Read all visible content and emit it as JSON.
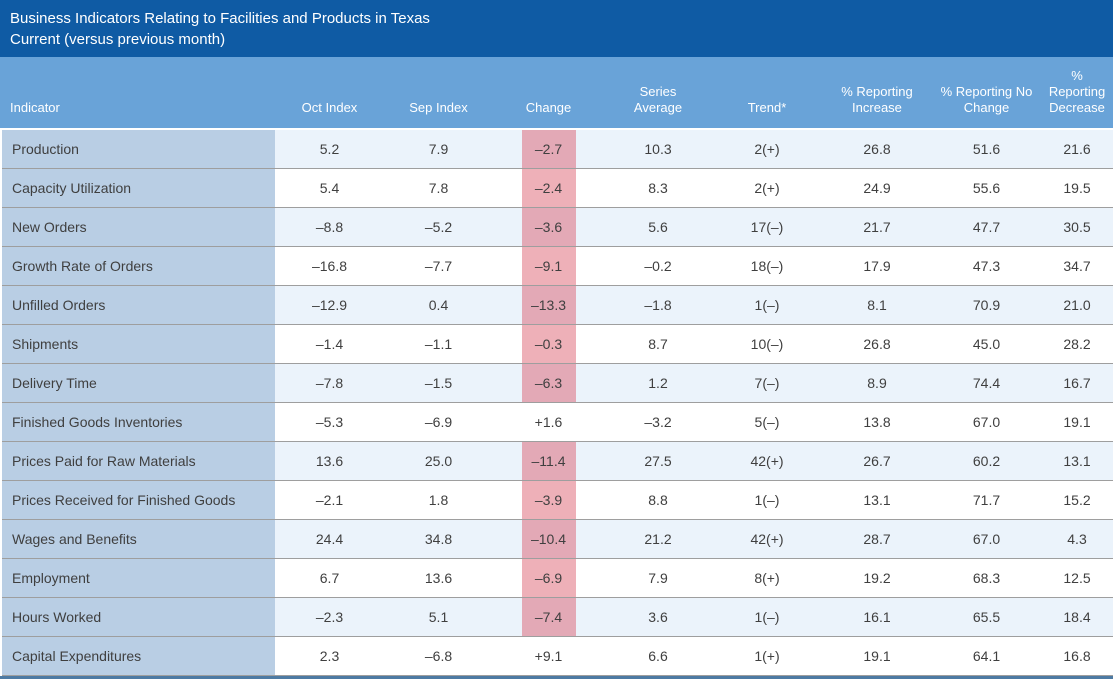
{
  "title": {
    "line1": "Business Indicators Relating to Facilities and Products in Texas",
    "line2": "Current (versus previous month)"
  },
  "colors": {
    "titlebar_bg": "#0f5ba4",
    "header_bg": "#69a3d8",
    "indicator_column_bg": "#b9cee4",
    "odd_row_bg": "#ebf3fb",
    "even_row_bg": "#ffffff",
    "negative_change_highlight": "rgba(217,79,97,0.45)",
    "row_divider": "#9e9e9e",
    "bottom_border": "#4d7aa3",
    "body_text": "#3f3f3f",
    "header_text": "#ffffff"
  },
  "table": {
    "columns": [
      "Indicator",
      "Oct Index",
      "Sep Index",
      "Change",
      "Series\nAverage",
      "Trend*",
      "% Reporting\nIncrease",
      "% Reporting No\nChange",
      "%\nReporting\nDecrease"
    ],
    "rows": [
      {
        "indicator": "Production",
        "oct_index": "5.2",
        "sep_index": "7.9",
        "change": "–2.7",
        "change_negative": true,
        "series_average": "10.3",
        "trend": "2(+)",
        "pct_increase": "26.8",
        "pct_no_change": "51.6",
        "pct_decrease": "21.6"
      },
      {
        "indicator": "Capacity Utilization",
        "oct_index": "5.4",
        "sep_index": "7.8",
        "change": "–2.4",
        "change_negative": true,
        "series_average": "8.3",
        "trend": "2(+)",
        "pct_increase": "24.9",
        "pct_no_change": "55.6",
        "pct_decrease": "19.5"
      },
      {
        "indicator": "New Orders",
        "oct_index": "–8.8",
        "sep_index": "–5.2",
        "change": "–3.6",
        "change_negative": true,
        "series_average": "5.6",
        "trend": "17(–)",
        "pct_increase": "21.7",
        "pct_no_change": "47.7",
        "pct_decrease": "30.5"
      },
      {
        "indicator": "Growth Rate of Orders",
        "oct_index": "–16.8",
        "sep_index": "–7.7",
        "change": "–9.1",
        "change_negative": true,
        "series_average": "–0.2",
        "trend": "18(–)",
        "pct_increase": "17.9",
        "pct_no_change": "47.3",
        "pct_decrease": "34.7"
      },
      {
        "indicator": "Unfilled Orders",
        "oct_index": "–12.9",
        "sep_index": "0.4",
        "change": "–13.3",
        "change_negative": true,
        "series_average": "–1.8",
        "trend": "1(–)",
        "pct_increase": "8.1",
        "pct_no_change": "70.9",
        "pct_decrease": "21.0"
      },
      {
        "indicator": "Shipments",
        "oct_index": "–1.4",
        "sep_index": "–1.1",
        "change": "–0.3",
        "change_negative": true,
        "series_average": "8.7",
        "trend": "10(–)",
        "pct_increase": "26.8",
        "pct_no_change": "45.0",
        "pct_decrease": "28.2"
      },
      {
        "indicator": "Delivery Time",
        "oct_index": "–7.8",
        "sep_index": "–1.5",
        "change": "–6.3",
        "change_negative": true,
        "series_average": "1.2",
        "trend": "7(–)",
        "pct_increase": "8.9",
        "pct_no_change": "74.4",
        "pct_decrease": "16.7"
      },
      {
        "indicator": "Finished Goods Inventories",
        "oct_index": "–5.3",
        "sep_index": "–6.9",
        "change": "+1.6",
        "change_negative": false,
        "series_average": "–3.2",
        "trend": "5(–)",
        "pct_increase": "13.8",
        "pct_no_change": "67.0",
        "pct_decrease": "19.1"
      },
      {
        "indicator": "Prices Paid for Raw Materials",
        "oct_index": "13.6",
        "sep_index": "25.0",
        "change": "–11.4",
        "change_negative": true,
        "series_average": "27.5",
        "trend": "42(+)",
        "pct_increase": "26.7",
        "pct_no_change": "60.2",
        "pct_decrease": "13.1"
      },
      {
        "indicator": "Prices Received for Finished Goods",
        "oct_index": "–2.1",
        "sep_index": "1.8",
        "change": "–3.9",
        "change_negative": true,
        "series_average": "8.8",
        "trend": "1(–)",
        "pct_increase": "13.1",
        "pct_no_change": "71.7",
        "pct_decrease": "15.2"
      },
      {
        "indicator": "Wages and Benefits",
        "oct_index": "24.4",
        "sep_index": "34.8",
        "change": "–10.4",
        "change_negative": true,
        "series_average": "21.2",
        "trend": "42(+)",
        "pct_increase": "28.7",
        "pct_no_change": "67.0",
        "pct_decrease": "4.3"
      },
      {
        "indicator": "Employment",
        "oct_index": "6.7",
        "sep_index": "13.6",
        "change": "–6.9",
        "change_negative": true,
        "series_average": "7.9",
        "trend": "8(+)",
        "pct_increase": "19.2",
        "pct_no_change": "68.3",
        "pct_decrease": "12.5"
      },
      {
        "indicator": "Hours Worked",
        "oct_index": "–2.3",
        "sep_index": "5.1",
        "change": "–7.4",
        "change_negative": true,
        "series_average": "3.6",
        "trend": "1(–)",
        "pct_increase": "16.1",
        "pct_no_change": "65.5",
        "pct_decrease": "18.4"
      },
      {
        "indicator": "Capital Expenditures",
        "oct_index": "2.3",
        "sep_index": "–6.8",
        "change": "+9.1",
        "change_negative": false,
        "series_average": "6.6",
        "trend": "1(+)",
        "pct_increase": "19.1",
        "pct_no_change": "64.1",
        "pct_decrease": "16.8"
      }
    ]
  }
}
